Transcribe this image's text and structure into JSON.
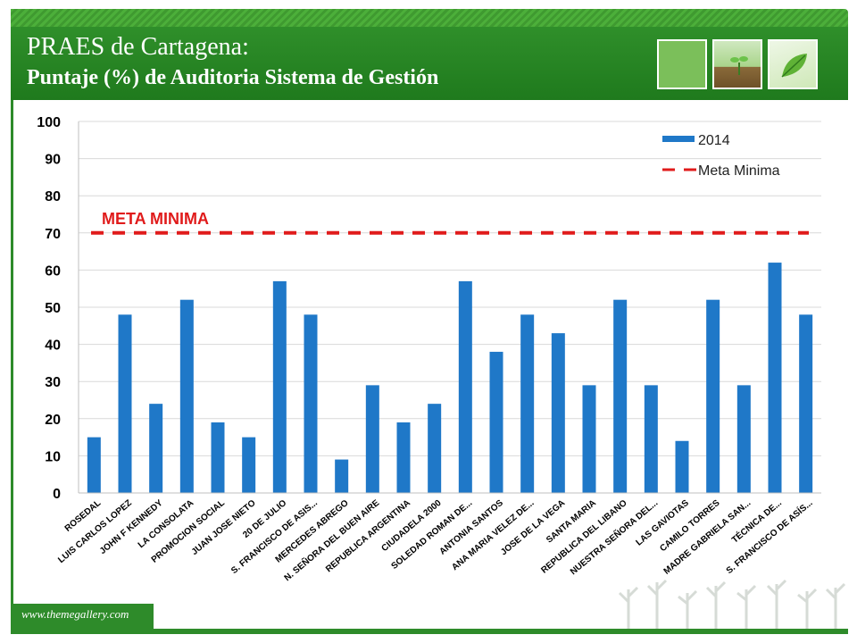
{
  "header": {
    "title": "PRAES de Cartagena:",
    "subtitle": "Puntaje (%) de Auditoria Sistema de Gestión"
  },
  "footer": {
    "url": "www.themegallery.com"
  },
  "colors": {
    "bar": "#1f78c8",
    "meta": "#e01b1b",
    "header": "#2e8b2a"
  },
  "chart_data": {
    "type": "bar",
    "title": "",
    "xlabel": "",
    "ylabel": "",
    "ylim": [
      0,
      100
    ],
    "yticks": [
      0,
      10,
      20,
      30,
      40,
      50,
      60,
      70,
      80,
      90,
      100
    ],
    "grid": true,
    "legend_position": "top-right",
    "categories": [
      "ROSEDAL",
      "LUIS CARLOS LOPEZ",
      "JOHN F KENNEDY",
      "LA CONSOLATA",
      "PROMOCION SOCIAL",
      "JUAN JOSE NIETO",
      "20 DE JULIO",
      "S. FRANCISCO DE ASIS...",
      "MERCEDES ABREGO",
      "N. SEÑORA DEL BUEN AIRE",
      "REPUBLICA ARGENTINA",
      "CIUDADELA 2000",
      "SOLEDAD ROMAN DE...",
      "ANTONIA SANTOS",
      "ANA MARIA VELEZ DE...",
      "JOSE DE LA VEGA",
      "SANTA MARIA",
      "REPUBLICA DEL LIBANO",
      "NUESTRA SEÑORA DEL...",
      "LAS GAVIOTAS",
      "CAMILO TORRES",
      "MADRE GABRIELA SAN...",
      "TÉCNICA DE...",
      "S. FRANCISCO DE ASÍS..."
    ],
    "series": [
      {
        "name": "2014",
        "values": [
          15,
          48,
          24,
          52,
          19,
          15,
          57,
          48,
          9,
          29,
          19,
          24,
          57,
          38,
          48,
          43,
          29,
          52,
          29,
          14,
          52,
          29,
          62,
          48
        ]
      },
      {
        "name": "Meta Minima",
        "type": "line",
        "style": "dashed",
        "value": 70
      }
    ],
    "annotations": [
      {
        "text": "META MINIMA",
        "y": 70
      }
    ]
  }
}
